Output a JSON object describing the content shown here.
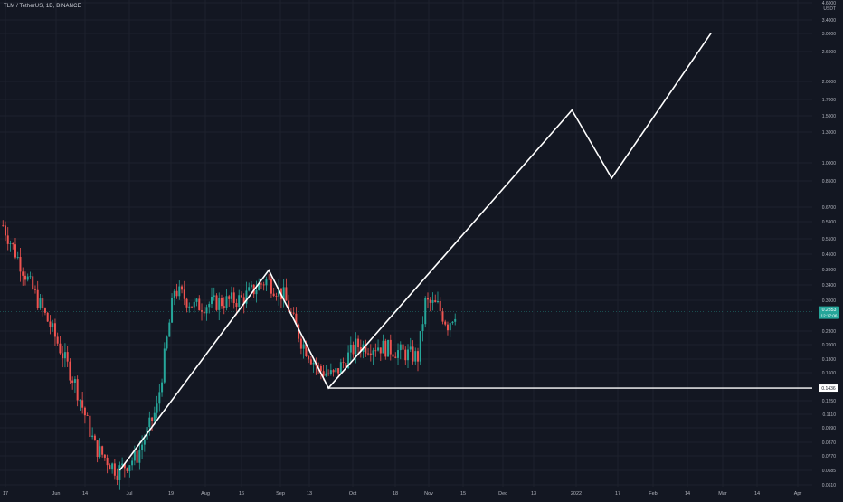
{
  "header": {
    "title": "TLM / TetherUS, 1D, BINANCE"
  },
  "colors": {
    "background": "#131722",
    "grid": "#1e222d",
    "up_candle": "#26a69a",
    "down_candle": "#ef5350",
    "drawing": "#ffffff",
    "price_badge": "#26a69a",
    "axis_text": "#b2b5be"
  },
  "chart_data": {
    "type": "candlestick",
    "scale": "log",
    "grid": true,
    "x_ticks": [
      "17",
      "Jun",
      "14",
      "Jul",
      "19",
      "Aug",
      "16",
      "Sep",
      "13",
      "Oct",
      "18",
      "Nov",
      "15",
      "Dec",
      "13",
      "2022",
      "17",
      "Feb",
      "14",
      "Mar",
      "14",
      "Apr"
    ],
    "y_ticks": [
      "4.6000",
      "USDT",
      "3.4000",
      "3.0000",
      "2.6000",
      "2.0000",
      "1.7000",
      "1.5000",
      "1.3000",
      "1.0000",
      "0.8500",
      "0.6700",
      "0.5900",
      "0.5100",
      "0.4500",
      "0.3900",
      "0.3400",
      "0.3000",
      "0.2300",
      "0.2000",
      "0.1800",
      "0.1600",
      "0.1250",
      "0.1110",
      "0.0990",
      "0.0870",
      "0.0770",
      "0.0685",
      "0.0610"
    ],
    "current_price": {
      "value": "0.2853",
      "countdown": "12:17:06"
    },
    "horizontal_line": {
      "value": "0.1436"
    },
    "projection_path": [
      {
        "date": "Jul 2",
        "price": 0.0685
      },
      {
        "date": "Aug 31",
        "price": 0.415
      },
      {
        "date": "Sep 24",
        "price": 0.1436
      },
      {
        "date": "Dec 31",
        "price": 1.75
      },
      {
        "date": "Jan 16",
        "price": 0.95
      },
      {
        "date": "Feb 25",
        "price": 3.5
      }
    ],
    "candles_summary": [
      {
        "date": "May 16",
        "price": 0.62
      },
      {
        "date": "May 25",
        "price": 0.4
      },
      {
        "date": "Jun 5",
        "price": 0.24
      },
      {
        "date": "Jun 14",
        "price": 0.15
      },
      {
        "date": "Jun 22",
        "price": 0.085
      },
      {
        "date": "Jul 1",
        "price": 0.068
      },
      {
        "date": "Jul 9",
        "price": 0.078
      },
      {
        "date": "Jul 17",
        "price": 0.12
      },
      {
        "date": "Jul 24",
        "price": 0.35
      },
      {
        "date": "Aug 1",
        "price": 0.3
      },
      {
        "date": "Aug 10",
        "price": 0.31
      },
      {
        "date": "Aug 20",
        "price": 0.32
      },
      {
        "date": "Aug 30",
        "price": 0.38
      },
      {
        "date": "Sep 6",
        "price": 0.33
      },
      {
        "date": "Sep 13",
        "price": 0.22
      },
      {
        "date": "Sep 20",
        "price": 0.17
      },
      {
        "date": "Sep 26",
        "price": 0.16
      },
      {
        "date": "Oct 5",
        "price": 0.21
      },
      {
        "date": "Oct 14",
        "price": 0.21
      },
      {
        "date": "Oct 22",
        "price": 0.2
      },
      {
        "date": "Oct 30",
        "price": 0.19
      },
      {
        "date": "Nov 2",
        "price": 0.31
      },
      {
        "date": "Nov 7",
        "price": 0.3
      },
      {
        "date": "Nov 11",
        "price": 0.255
      },
      {
        "date": "Nov 14",
        "price": 0.2853
      }
    ]
  }
}
